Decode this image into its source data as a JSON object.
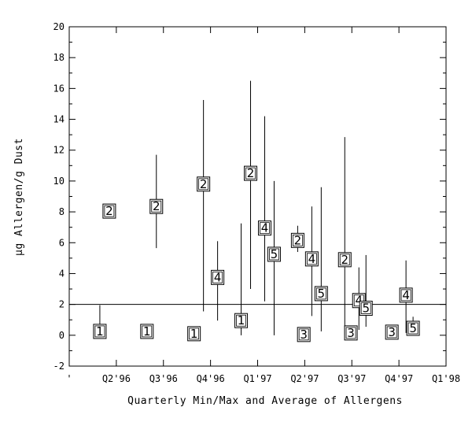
{
  "chart_data": {
    "type": "scatter",
    "title": "",
    "xlabel": "Quarterly Min/Max and Average of Allergens",
    "ylabel": "μg Allergen/g Dust",
    "ylim": [
      -2,
      20
    ],
    "xlim": [
      0,
      8
    ],
    "yticks": [
      -2,
      0,
      2,
      4,
      6,
      8,
      10,
      12,
      14,
      16,
      18,
      20
    ],
    "ytick_labels": [
      "-2",
      "0",
      "2",
      "4",
      "6",
      "8",
      "10",
      "12",
      "14",
      "16",
      "18",
      "20"
    ],
    "categories": [
      "Q2'96",
      "Q3'96",
      "Q4'96",
      "Q1'97",
      "Q2'97",
      "Q3'97",
      "Q4'97",
      "Q1'98"
    ],
    "category_positions": [
      1,
      2,
      3,
      4,
      5,
      6,
      7,
      8
    ],
    "reference_line": {
      "y": 2,
      "color": "#000000"
    },
    "grid": false,
    "legend": "none",
    "points": [
      {
        "label": "1",
        "x": 0.65,
        "avg": 0.25,
        "min": 0.0,
        "max": 1.95
      },
      {
        "label": "2",
        "x": 0.85,
        "avg": 8.05,
        "min": 8.05,
        "max": 8.05
      },
      {
        "label": "1",
        "x": 1.65,
        "avg": 0.25,
        "min": 0.25,
        "max": 0.25
      },
      {
        "label": "2",
        "x": 1.85,
        "avg": 8.35,
        "min": 5.65,
        "max": 11.7
      },
      {
        "label": "1",
        "x": 2.65,
        "avg": 0.1,
        "min": 0.1,
        "max": 0.1
      },
      {
        "label": "2",
        "x": 2.85,
        "avg": 9.8,
        "min": 1.55,
        "max": 15.25
      },
      {
        "label": "4",
        "x": 3.15,
        "avg": 3.75,
        "min": 0.95,
        "max": 6.1
      },
      {
        "label": "1",
        "x": 3.65,
        "avg": 0.95,
        "min": 0.0,
        "max": 7.25
      },
      {
        "label": "2",
        "x": 3.85,
        "avg": 10.5,
        "min": 3.0,
        "max": 16.5
      },
      {
        "label": "4",
        "x": 4.15,
        "avg": 6.95,
        "min": 2.2,
        "max": 14.2
      },
      {
        "label": "5",
        "x": 4.35,
        "avg": 5.25,
        "min": 0.0,
        "max": 10.0
      },
      {
        "label": "2",
        "x": 4.85,
        "avg": 6.15,
        "min": 5.4,
        "max": 7.1
      },
      {
        "label": "3",
        "x": 4.98,
        "avg": 0.05,
        "min": 0.05,
        "max": 0.05
      },
      {
        "label": "4",
        "x": 5.15,
        "avg": 4.95,
        "min": 1.25,
        "max": 8.35
      },
      {
        "label": "5",
        "x": 5.35,
        "avg": 2.7,
        "min": 0.25,
        "max": 9.6
      },
      {
        "label": "2",
        "x": 5.85,
        "avg": 4.9,
        "min": 0.0,
        "max": 12.85
      },
      {
        "label": "3",
        "x": 5.98,
        "avg": 0.15,
        "min": 0.15,
        "max": 0.15
      },
      {
        "label": "4",
        "x": 6.15,
        "avg": 2.25,
        "min": 0.35,
        "max": 4.4
      },
      {
        "label": "5",
        "x": 6.3,
        "avg": 1.75,
        "min": 0.55,
        "max": 5.2
      },
      {
        "label": "3",
        "x": 6.85,
        "avg": 0.2,
        "min": 0.2,
        "max": 0.2
      },
      {
        "label": "4",
        "x": 7.15,
        "avg": 2.6,
        "min": 0.15,
        "max": 4.85
      },
      {
        "label": "5",
        "x": 7.3,
        "avg": 0.45,
        "min": 0.25,
        "max": 1.2
      }
    ]
  }
}
